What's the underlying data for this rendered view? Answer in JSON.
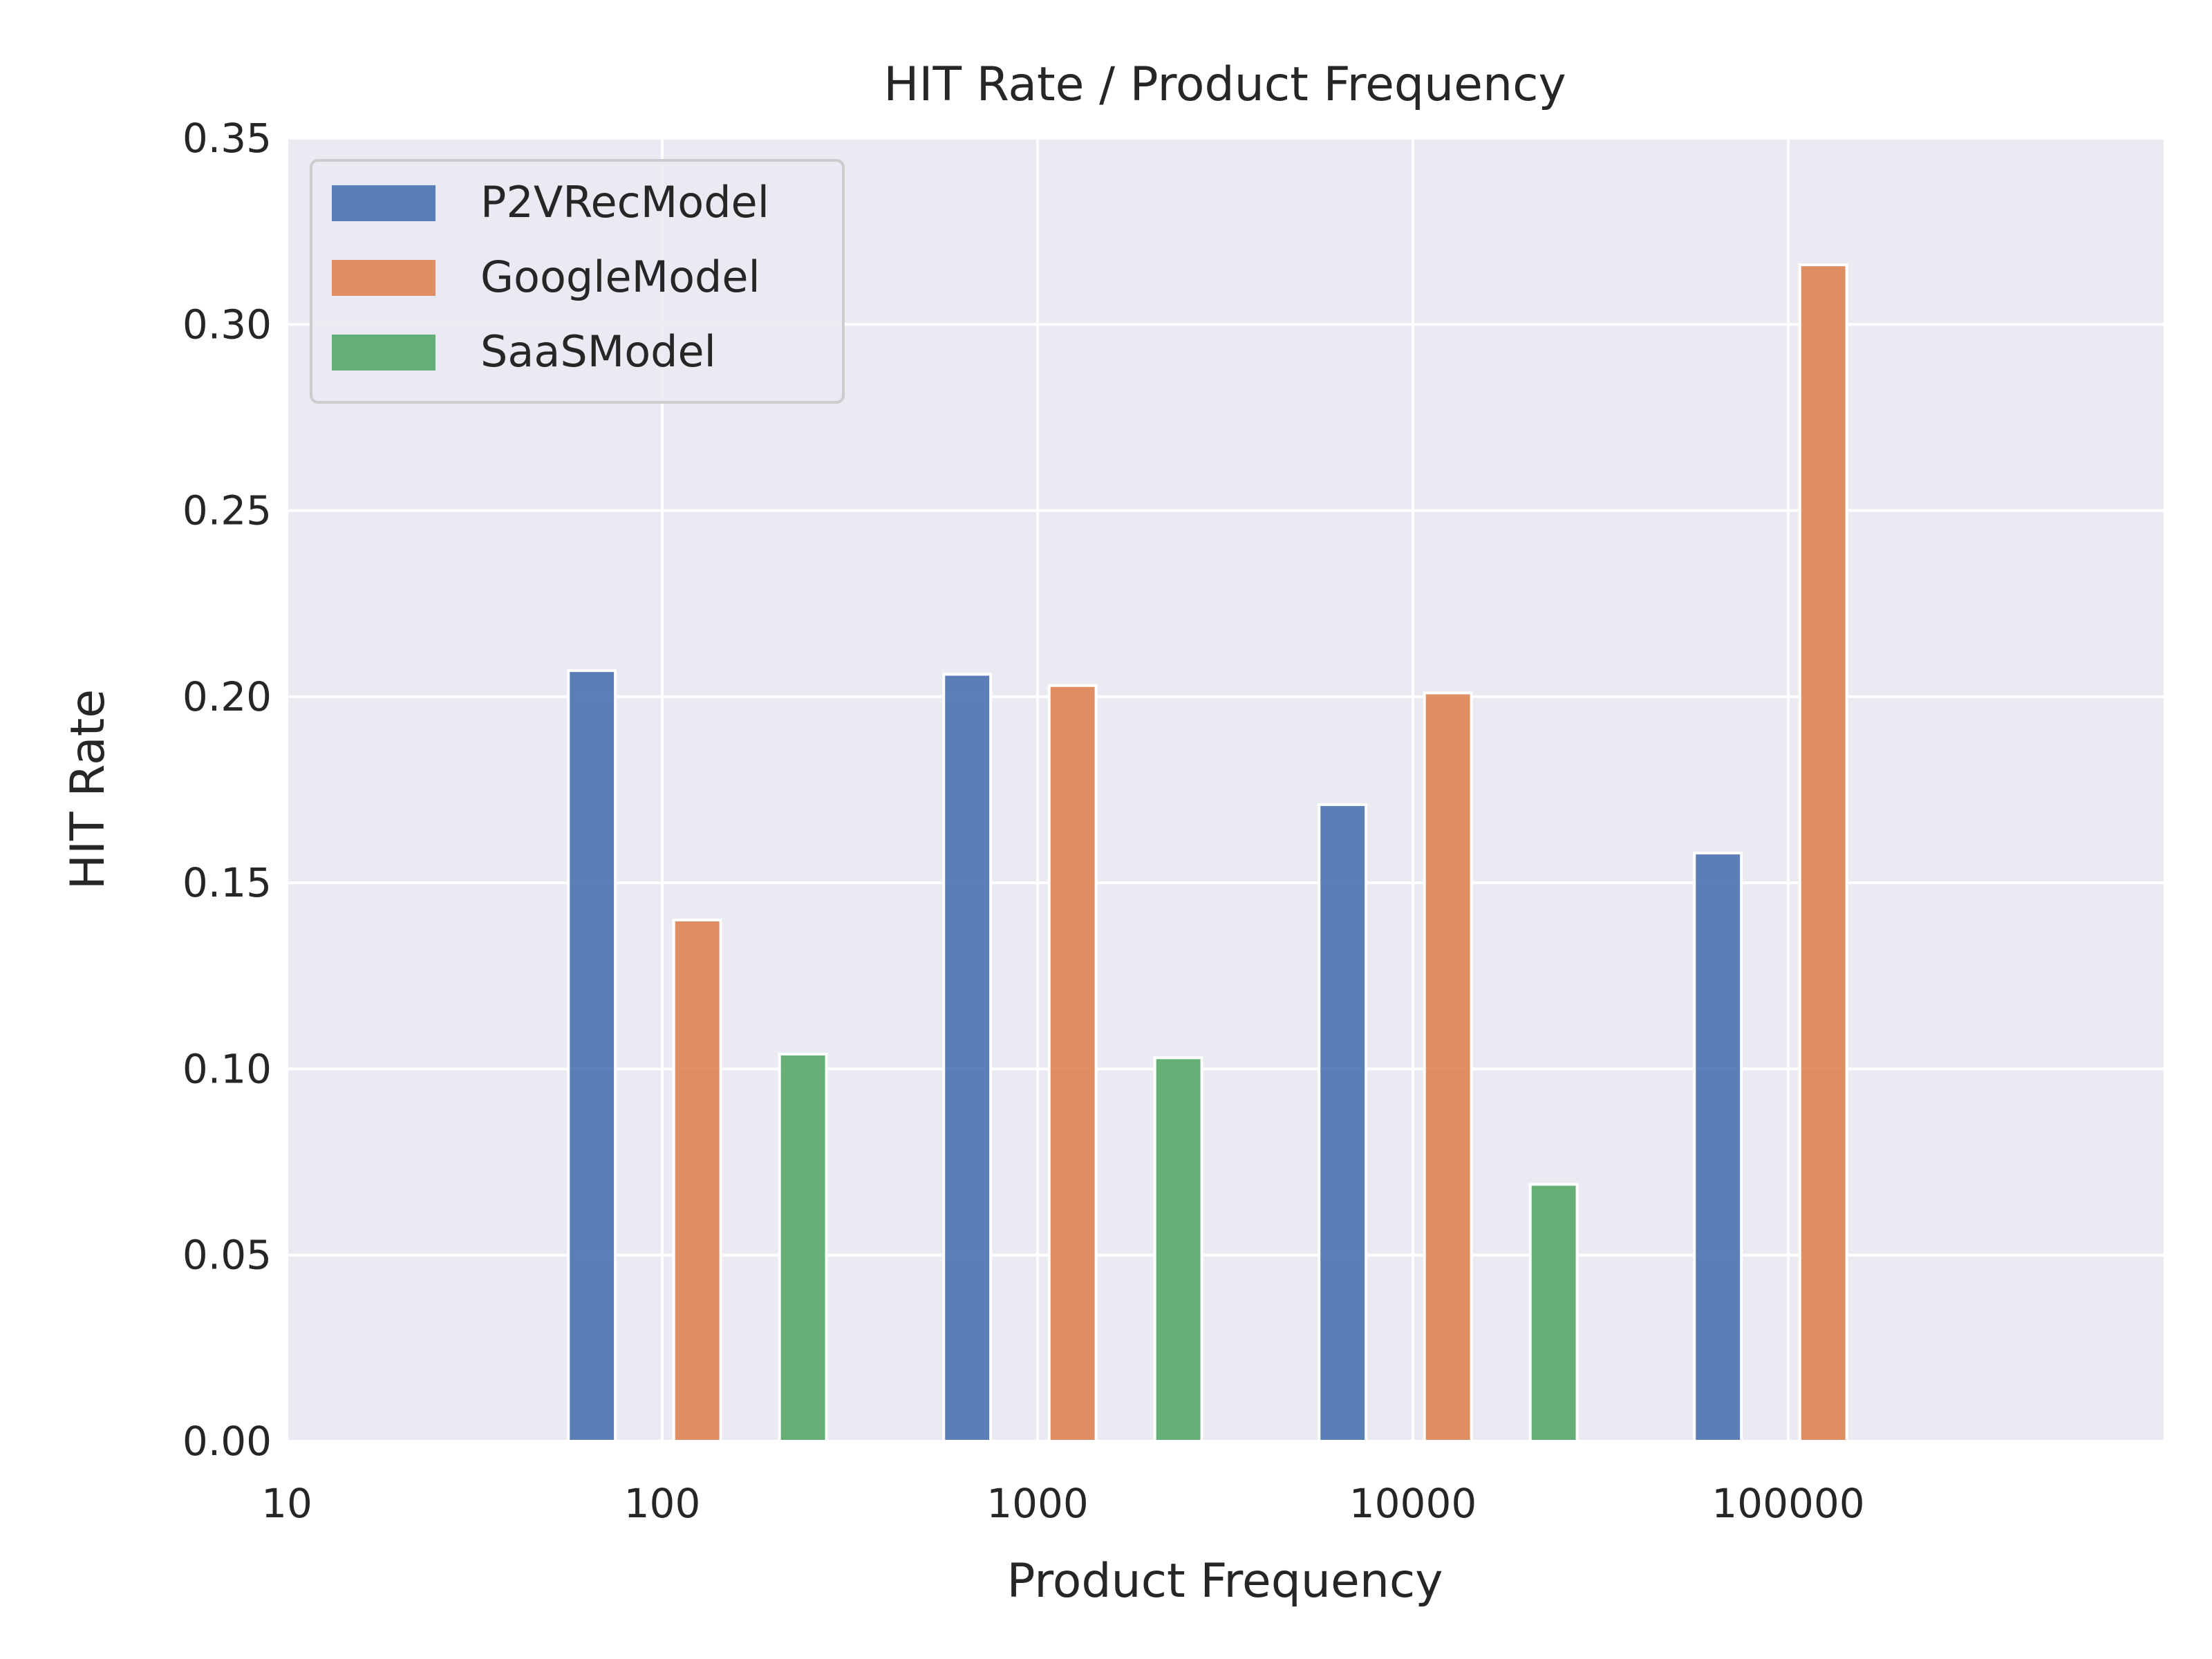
{
  "chart_data": {
    "type": "bar",
    "title": "HIT Rate / Product Frequency",
    "xlabel": "Product Frequency",
    "ylabel": "HIT Rate",
    "x_scale": "log",
    "xlim": [
      10,
      1000000
    ],
    "ylim": [
      0,
      0.35
    ],
    "categories": [
      "100",
      "1000",
      "10000",
      "100000"
    ],
    "x_tick_labels": [
      "10",
      "100",
      "1000",
      "10000",
      "100000"
    ],
    "y_tick_labels": [
      "0.00",
      "0.05",
      "0.10",
      "0.15",
      "0.20",
      "0.25",
      "0.30",
      "0.35"
    ],
    "y_ticks": [
      0,
      0.05,
      0.1,
      0.15,
      0.2,
      0.25,
      0.3,
      0.35
    ],
    "grid": true,
    "legend_position": "top-left",
    "series": [
      {
        "name": "P2VRecModel",
        "color": "#4c72b0",
        "values": [
          0.207,
          0.206,
          0.171,
          0.158
        ]
      },
      {
        "name": "GoogleModel",
        "color": "#dd8452",
        "values": [
          0.14,
          0.203,
          0.201,
          0.316
        ]
      },
      {
        "name": "SaaSModel",
        "color": "#55a868",
        "values": [
          0.104,
          0.103,
          0.069,
          null
        ]
      }
    ]
  },
  "colors": {
    "plot_background": "#eaeaf2",
    "grid": "#ffffff",
    "legend_background": "#eaeaf2",
    "legend_border": "#cccccc"
  }
}
